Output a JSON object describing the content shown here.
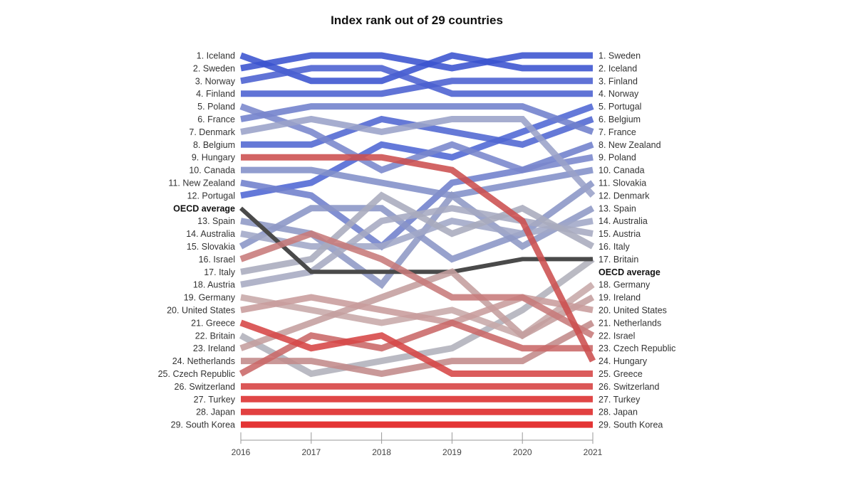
{
  "chart_data": {
    "type": "line",
    "title": "Index rank out of 29 countries",
    "x": [
      "2016",
      "2017",
      "2018",
      "2019",
      "2020",
      "2021"
    ],
    "ylim": [
      1,
      30
    ],
    "y_inverted": true,
    "grid": false,
    "average_label": "OECD average",
    "series": [
      {
        "name": "Sweden",
        "values": [
          2,
          1,
          1,
          2,
          1,
          1
        ],
        "color": "#3a53cf"
      },
      {
        "name": "Iceland",
        "values": [
          1,
          3,
          3,
          1,
          2,
          2
        ],
        "color": "#3a53cf"
      },
      {
        "name": "Finland",
        "values": [
          4,
          4,
          4,
          3,
          3,
          3
        ],
        "color": "#4a60d0"
      },
      {
        "name": "Norway",
        "values": [
          3,
          2,
          2,
          4,
          4,
          4
        ],
        "color": "#4a60d0"
      },
      {
        "name": "Portugal",
        "values": [
          12,
          11,
          8,
          9,
          7,
          5
        ],
        "color": "#4f66d4"
      },
      {
        "name": "Belgium",
        "values": [
          8,
          8,
          6,
          7,
          8,
          6
        ],
        "color": "#5067d2"
      },
      {
        "name": "France",
        "values": [
          6,
          5,
          5,
          5,
          5,
          7
        ],
        "color": "#6f7fcc"
      },
      {
        "name": "New Zealand",
        "values": [
          11,
          12,
          15,
          11,
          10,
          8
        ],
        "color": "#6f7fcc"
      },
      {
        "name": "Poland",
        "values": [
          5,
          7,
          10,
          8,
          10,
          9
        ],
        "color": "#7986cc"
      },
      {
        "name": "Canada",
        "values": [
          10,
          10,
          11,
          12,
          11,
          10
        ],
        "color": "#8290c8"
      },
      {
        "name": "Slovakia",
        "values": [
          15,
          13,
          13,
          16,
          15,
          11
        ],
        "color": "#8a95c6"
      },
      {
        "name": "Denmark",
        "values": [
          7,
          6,
          7,
          6,
          6,
          12
        ],
        "color": "#9aa2c8"
      },
      {
        "name": "Spain",
        "values": [
          13,
          14,
          18,
          12,
          16,
          13
        ],
        "color": "#8e98c5"
      },
      {
        "name": "Australia",
        "values": [
          14,
          15,
          15,
          14,
          15,
          14
        ],
        "color": "#a1a7c7"
      },
      {
        "name": "Austria",
        "values": [
          18,
          17,
          14,
          13,
          14,
          15
        ],
        "color": "#a6aac2"
      },
      {
        "name": "Italy",
        "values": [
          17,
          16,
          12,
          15,
          13,
          16
        ],
        "color": "#a9abbd"
      },
      {
        "name": "Britain",
        "values": [
          22,
          25,
          24,
          23,
          20,
          17
        ],
        "color": "#b0b1bb"
      },
      {
        "name": "OECD average",
        "values": [
          13,
          18,
          18,
          18,
          17,
          17
        ],
        "color": "#4a4a4a"
      },
      {
        "name": "Germany",
        "values": [
          19,
          20,
          21,
          20,
          22,
          18
        ],
        "color": "#c7a9a9"
      },
      {
        "name": "Ireland",
        "values": [
          23,
          21,
          19,
          17,
          22,
          19
        ],
        "color": "#c49e9e"
      },
      {
        "name": "United States",
        "values": [
          20,
          19,
          20,
          21,
          19,
          20
        ],
        "color": "#c89c9c"
      },
      {
        "name": "Netherlands",
        "values": [
          24,
          24,
          25,
          24,
          24,
          21
        ],
        "color": "#c28a8a"
      },
      {
        "name": "Israel",
        "values": [
          16,
          14,
          16,
          19,
          19,
          22
        ],
        "color": "#c77a7a"
      },
      {
        "name": "Czech Republic",
        "values": [
          25,
          22,
          23,
          21,
          23,
          23
        ],
        "color": "#c96868"
      },
      {
        "name": "Hungary",
        "values": [
          9,
          9,
          9,
          10,
          14,
          24
        ],
        "color": "#cc4e4e"
      },
      {
        "name": "Greece",
        "values": [
          21,
          23,
          22,
          25,
          25,
          25
        ],
        "color": "#d64646"
      },
      {
        "name": "Switzerland",
        "values": [
          26,
          26,
          26,
          26,
          26,
          26
        ],
        "color": "#d64040"
      },
      {
        "name": "Turkey",
        "values": [
          27,
          27,
          27,
          27,
          27,
          27
        ],
        "color": "#dc2d2d"
      },
      {
        "name": "Japan",
        "values": [
          28,
          28,
          28,
          28,
          28,
          28
        ],
        "color": "#de2626"
      },
      {
        "name": "South Korea",
        "values": [
          29,
          29,
          29,
          29,
          29,
          29
        ],
        "color": "#e01818"
      }
    ],
    "left_labels": [
      "1. Iceland",
      "2. Sweden",
      "3. Norway",
      "4. Finland",
      "5. Poland",
      "6. France",
      "7. Denmark",
      "8. Belgium",
      "9. Hungary",
      "10. Canada",
      "11. New Zealand",
      "12. Portugal",
      "OECD average",
      "13. Spain",
      "14. Australia",
      "15. Slovakia",
      "16. Israel",
      "17. Italy",
      "18. Austria",
      "19. Germany",
      "20. United States",
      "21. Greece",
      "22. Britain",
      "23. Ireland",
      "24. Netherlands",
      "25. Czech Republic",
      "26. Switzerland",
      "27. Turkey",
      "28. Japan",
      "29. South Korea"
    ],
    "right_labels": [
      "1. Sweden",
      "2. Iceland",
      "3. Finland",
      "4. Norway",
      "5. Portugal",
      "6. Belgium",
      "7. France",
      "8. New Zealand",
      "9. Poland",
      "10. Canada",
      "11. Slovakia",
      "12. Denmark",
      "13. Spain",
      "14. Australia",
      "15. Austria",
      "16. Italy",
      "17. Britain",
      "OECD average",
      "18. Germany",
      "19. Ireland",
      "20. United States",
      "21. Netherlands",
      "22. Israel",
      "23. Czech Republic",
      "24. Hungary",
      "25. Greece",
      "26. Switzerland",
      "27. Turkey",
      "28. Japan",
      "29. South Korea"
    ]
  }
}
